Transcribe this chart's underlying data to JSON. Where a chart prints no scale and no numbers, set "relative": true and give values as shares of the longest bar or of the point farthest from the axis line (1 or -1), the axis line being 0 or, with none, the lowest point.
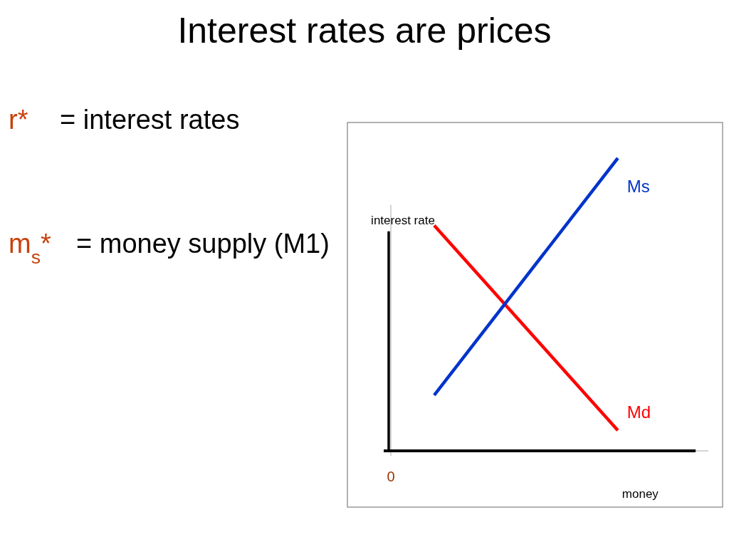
{
  "chart_data": {
    "type": "line",
    "title": "Interest rates are prices",
    "annotations": [
      "r*",
      "= interest rates",
      "m$_{s}$*",
      "= money supply (M1)",
      "0"
    ],
    "xlabel": "money",
    "ylabel": "interest rate",
    "relative": true,
    "categories": [
      null,
      null
    ],
    "series": [
      {
        "name": "Md",
        "color": "#ff0000",
        "values": [
          0.77,
          0.07
        ]
      },
      {
        "name": "Ms",
        "color": "#0033cc",
        "values": [
          0.19,
          1
        ]
      }
    ]
  }
}
